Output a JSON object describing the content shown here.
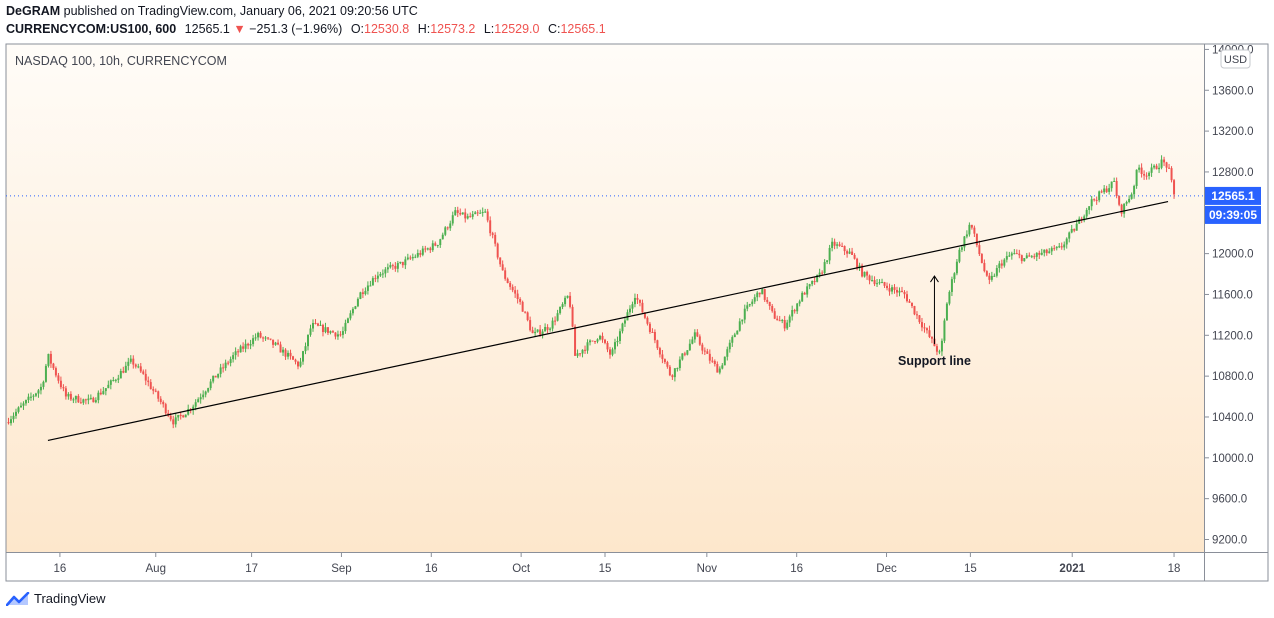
{
  "header": {
    "author": "DeGRAM",
    "published_text": "published on TradingView.com, January 06, 2021 09:20:56 UTC",
    "symbol": "CURRENCYCOM:US100, 600",
    "last": "12565.1",
    "change_arrow": "▼",
    "change": "−251.3 (−1.96%)",
    "o_label": "O:",
    "o": "12530.8",
    "h_label": "H:",
    "h": "12573.2",
    "l_label": "L:",
    "l": "12529.0",
    "c_label": "C:",
    "c": "12565.1"
  },
  "legend": {
    "title": "NASDAQ 100, 10h, CURRENCYCOM"
  },
  "price_axis": {
    "currency": "USD",
    "last_price_label": "12565.1",
    "countdown_label": "09:39:05"
  },
  "annotation": {
    "text": "Support line"
  },
  "footer": {
    "brand": "TradingView"
  },
  "colors": {
    "up": "#26a69a",
    "up_candle": "#4caf50",
    "down": "#ef5350",
    "price_tag": "#2962ff",
    "bg_top": "#fffcf8",
    "bg_bottom": "#fde7cc"
  },
  "chart_data": {
    "type": "candlestick",
    "title": "NASDAQ 100, 10h, CURRENCYCOM",
    "ylim": [
      9000,
      14000
    ],
    "y_ticks": [
      "9200.0",
      "9600.0",
      "10000.0",
      "10400.0",
      "10800.0",
      "11200.0",
      "11600.0",
      "12000.0",
      "12400.0",
      "12800.0",
      "13200.0",
      "13600.0",
      "14000.0"
    ],
    "x_ticks": [
      "16",
      "Aug",
      "17",
      "Sep",
      "16",
      "Oct",
      "15",
      "Nov",
      "16",
      "Dec",
      "15",
      "2021",
      "18"
    ],
    "x_range": [
      "2020-07-07",
      "2021-01-23"
    ],
    "x_tick_dates": [
      "2020-07-16",
      "2020-08-01",
      "2020-08-17",
      "2020-09-01",
      "2020-09-16",
      "2020-10-01",
      "2020-10-15",
      "2020-11-01",
      "2020-11-16",
      "2020-12-01",
      "2020-12-15",
      "2021-01-01",
      "2021-01-18"
    ],
    "last_price": 12565.1,
    "support_line": {
      "start": [
        "2020-07-14",
        10170
      ],
      "end": [
        "2021-01-17",
        12510
      ]
    },
    "annotation_arrow_point": [
      "2020-12-09",
      11780
    ],
    "path_points": [
      [
        "2020-07-07",
        10350
      ],
      [
        "2020-07-13",
        10700
      ],
      [
        "2020-07-14",
        11000
      ],
      [
        "2020-07-17",
        10600
      ],
      [
        "2020-07-21",
        10550
      ],
      [
        "2020-07-24",
        10700
      ],
      [
        "2020-07-28",
        10950
      ],
      [
        "2020-07-30",
        10800
      ],
      [
        "2020-08-04",
        10350
      ],
      [
        "2020-08-07",
        10500
      ],
      [
        "2020-08-11",
        10800
      ],
      [
        "2020-08-14",
        11000
      ],
      [
        "2020-08-18",
        11200
      ],
      [
        "2020-08-21",
        11100
      ],
      [
        "2020-08-25",
        10900
      ],
      [
        "2020-08-27",
        11300
      ],
      [
        "2020-09-01",
        11200
      ],
      [
        "2020-09-04",
        11600
      ],
      [
        "2020-09-07",
        11800
      ],
      [
        "2020-09-11",
        11900
      ],
      [
        "2020-09-14",
        12000
      ],
      [
        "2020-09-17",
        12100
      ],
      [
        "2020-09-20",
        12400
      ],
      [
        "2020-09-22",
        12350
      ],
      [
        "2020-09-25",
        12400
      ],
      [
        "2020-09-28",
        11800
      ],
      [
        "2020-10-01",
        11500
      ],
      [
        "2020-10-03",
        11200
      ],
      [
        "2020-10-06",
        11300
      ],
      [
        "2020-10-09",
        11600
      ],
      [
        "2020-10-10",
        11000
      ],
      [
        "2020-10-14",
        11200
      ],
      [
        "2020-10-16",
        11000
      ],
      [
        "2020-10-20",
        11600
      ],
      [
        "2020-10-23",
        11200
      ],
      [
        "2020-10-26",
        10800
      ],
      [
        "2020-10-28",
        11000
      ],
      [
        "2020-10-30",
        11200
      ],
      [
        "2020-11-01",
        11000
      ],
      [
        "2020-11-03",
        10850
      ],
      [
        "2020-11-07",
        11400
      ],
      [
        "2020-11-10",
        11650
      ],
      [
        "2020-11-12",
        11400
      ],
      [
        "2020-11-14",
        11300
      ],
      [
        "2020-11-17",
        11600
      ],
      [
        "2020-11-20",
        11800
      ],
      [
        "2020-11-22",
        12100
      ],
      [
        "2020-11-25",
        12000
      ],
      [
        "2020-11-27",
        11800
      ],
      [
        "2020-11-30",
        11700
      ],
      [
        "2020-12-02",
        11650
      ],
      [
        "2020-12-04",
        11600
      ],
      [
        "2020-12-06",
        11400
      ],
      [
        "2020-12-08",
        11200
      ],
      [
        "2020-12-10",
        11000
      ],
      [
        "2020-12-11",
        11500
      ],
      [
        "2020-12-13",
        12000
      ],
      [
        "2020-12-15",
        12300
      ],
      [
        "2020-12-16",
        12100
      ],
      [
        "2020-12-18",
        11700
      ],
      [
        "2020-12-20",
        11900
      ],
      [
        "2020-12-22",
        12000
      ],
      [
        "2020-12-24",
        11950
      ],
      [
        "2020-12-27",
        12000
      ],
      [
        "2020-12-30",
        12050
      ],
      [
        "2021-01-02",
        12300
      ],
      [
        "2021-01-04",
        12500
      ],
      [
        "2021-01-06",
        12600
      ],
      [
        "2021-01-08",
        12700
      ],
      [
        "2021-01-09",
        12400
      ],
      [
        "2021-01-11",
        12600
      ],
      [
        "2021-01-12",
        12850
      ],
      [
        "2021-01-13",
        12780
      ],
      [
        "2021-01-14",
        12800
      ],
      [
        "2021-01-16",
        12900
      ],
      [
        "2021-01-17",
        12850
      ],
      [
        "2021-01-18",
        12570
      ]
    ]
  }
}
